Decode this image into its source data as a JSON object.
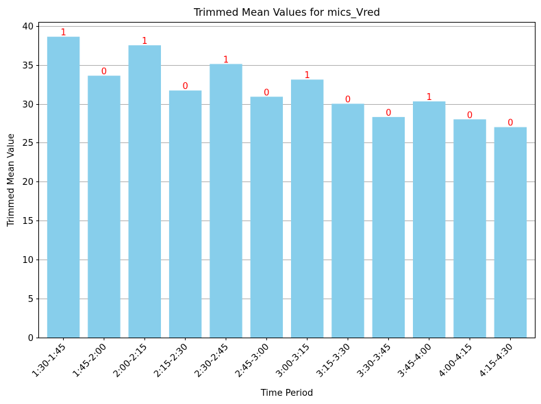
{
  "chart_data": {
    "type": "bar",
    "title": "Trimmed Mean Values for mics_Vred",
    "xlabel": "Time Period",
    "ylabel": "Trimmed Mean Value",
    "categories": [
      "1:30-1:45",
      "1:45-2:00",
      "2:00-2:15",
      "2:15-2:30",
      "2:30-2:45",
      "2:45-3:00",
      "3:00-3:15",
      "3:15-3:30",
      "3:30-3:45",
      "3:45-4:00",
      "4:00-4:15",
      "4:15-4:30"
    ],
    "values": [
      38.6,
      33.6,
      37.5,
      31.7,
      35.1,
      30.9,
      33.1,
      30.0,
      28.3,
      30.3,
      28.0,
      27.0
    ],
    "bar_labels": [
      "1",
      "0",
      "1",
      "0",
      "1",
      "0",
      "1",
      "0",
      "0",
      "1",
      "0",
      "0"
    ],
    "ylim": [
      0,
      40.5
    ],
    "yticks": [
      0,
      5,
      10,
      15,
      20,
      25,
      30,
      35,
      40
    ],
    "grid": "horizontal",
    "colors": {
      "bar": "#87ceeb",
      "bar_label": "#ff0000",
      "grid": "#b0b0b0"
    }
  }
}
